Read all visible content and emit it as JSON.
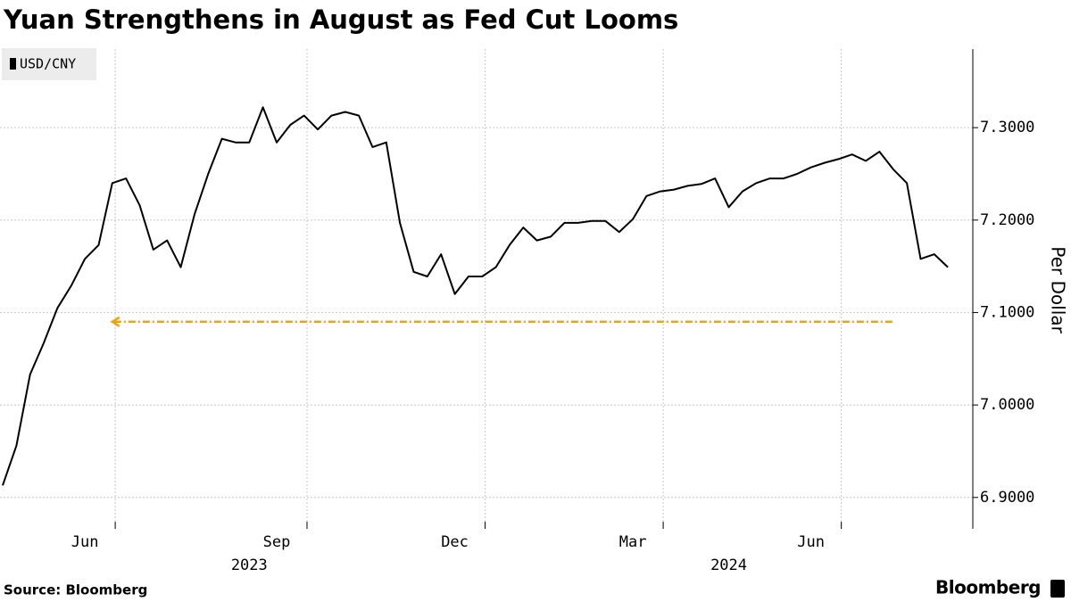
{
  "chart_data": {
    "type": "line",
    "title": "Yuan Strengthens in August as Fed Cut Looms",
    "y_label": "Per Dollar",
    "source": "Source: Bloomberg",
    "brand": "Bloomberg",
    "categories": [
      null,
      null,
      null,
      null,
      null,
      null,
      "Jun",
      null,
      null,
      null,
      null,
      null,
      null,
      null,
      null,
      null,
      null,
      null,
      null,
      null,
      "Sep",
      null,
      null,
      null,
      null,
      null,
      null,
      null,
      null,
      null,
      null,
      null,
      null,
      "Dec",
      null,
      null,
      null,
      null,
      null,
      null,
      null,
      null,
      null,
      null,
      null,
      null,
      "Mar",
      null,
      null,
      null,
      null,
      null,
      null,
      null,
      null,
      null,
      null,
      null,
      null,
      "Jun",
      null,
      null,
      null,
      null,
      null,
      null,
      null,
      null,
      null,
      null
    ],
    "year_labels": [
      {
        "label": "2023",
        "index": 18
      },
      {
        "label": "2024",
        "index": 53
      }
    ],
    "series": [
      {
        "name": "USD/CNY",
        "color": "#000000",
        "values": [
          6.913,
          6.956,
          7.033,
          7.067,
          7.105,
          7.129,
          7.158,
          7.173,
          7.24,
          7.245,
          7.216,
          7.168,
          7.178,
          7.149,
          7.206,
          7.25,
          7.288,
          7.284,
          7.284,
          7.322,
          7.284,
          7.303,
          7.313,
          7.298,
          7.313,
          7.317,
          7.313,
          7.279,
          7.284,
          7.197,
          7.144,
          7.139,
          7.163,
          7.12,
          7.139,
          7.139,
          7.149,
          7.173,
          7.192,
          7.178,
          7.182,
          7.197,
          7.197,
          7.199,
          7.199,
          7.187,
          7.201,
          7.226,
          7.231,
          7.233,
          7.237,
          7.239,
          7.245,
          7.214,
          7.231,
          7.24,
          7.245,
          7.245,
          7.25,
          7.257,
          7.262,
          7.266,
          7.271,
          7.264,
          7.274,
          7.255,
          7.24,
          7.158,
          7.163,
          7.149
        ]
      }
    ],
    "annotation_line": {
      "value": 7.09,
      "from": 8,
      "to": 65,
      "color": "#f0a30a"
    },
    "ylim": [
      6.866,
      7.385
    ],
    "yticks": [
      {
        "value": 6.9,
        "label": "6.9000"
      },
      {
        "value": 7.0,
        "label": "7.0000"
      },
      {
        "value": 7.1,
        "label": "7.1000"
      },
      {
        "value": 7.2,
        "label": "7.2000"
      },
      {
        "value": 7.3,
        "label": "7.3000"
      }
    ],
    "grid": true,
    "legend": "top-left"
  }
}
